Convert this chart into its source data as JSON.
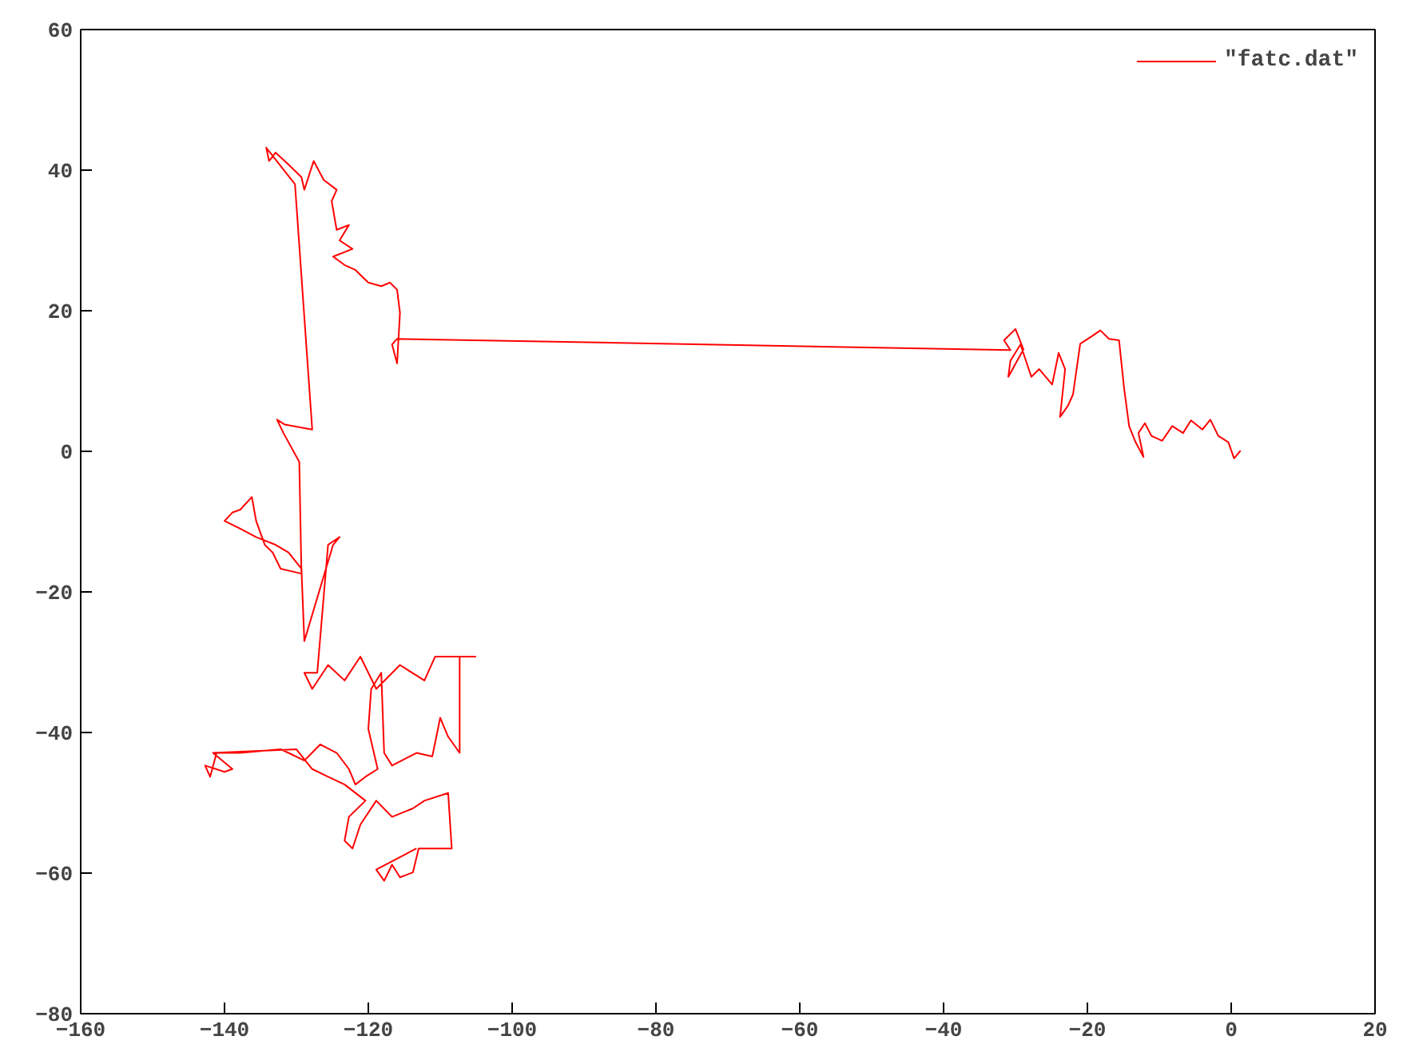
{
  "chart_data": {
    "type": "line",
    "xlim": [
      -160,
      20
    ],
    "ylim": [
      -80,
      60
    ],
    "xticks": [
      -160,
      -140,
      -120,
      -100,
      -80,
      -60,
      -40,
      -20,
      0,
      20
    ],
    "yticks": [
      -80,
      -60,
      -40,
      -20,
      0,
      20,
      40,
      60
    ],
    "grid": false,
    "legend": "top right",
    "marker": "none",
    "line_style": "solid",
    "series": [
      {
        "name": "\"fatc.dat\"",
        "color": "#ff0000",
        "x": [
          1.3,
          0.4,
          -0.4,
          -1.8,
          -2.9,
          -4,
          -5.6,
          -6.7,
          -8.2,
          -9.6,
          -11.1,
          -12,
          -12.9,
          -12.2,
          -13.3,
          -14.2,
          -14.9,
          -15.6,
          -17,
          -18.2,
          -19.5,
          -21,
          -22,
          -22.7,
          -23.8,
          -23.1,
          -24,
          -24.9,
          -26.7,
          -27.8,
          -29.3,
          -30.7,
          -31,
          -28.9,
          -30,
          -31.6,
          -30.7,
          -116,
          -116.7,
          -116,
          -115.6,
          -116,
          -117,
          -118.2,
          -120,
          -121.8,
          -123.3,
          -124.9,
          -122.2,
          -124,
          -122.7,
          -124.4,
          -125.1,
          -124.4,
          -126.2,
          -127.6,
          -128.9,
          -129.3,
          -131.1,
          -132.9,
          -133.8,
          -134.2,
          -130.2,
          -127.8,
          -131.6,
          -132.7,
          -131.8,
          -129.6,
          -129.3,
          -132.2,
          -133.3,
          -134.4,
          -135.6,
          -136.2,
          -137.8,
          -138.9,
          -140,
          -137.8,
          -135.6,
          -132.9,
          -131.1,
          -129.3,
          -128.9,
          -124.9,
          -124,
          -125.6,
          -127.1,
          -128.9,
          -127.8,
          -125.6,
          -123.3,
          -121.1,
          -118.9,
          -115.6,
          -112.2,
          -110.7,
          -105.1,
          -107.3,
          -107.3,
          -108.9,
          -110,
          -111.1,
          -113.3,
          -116.7,
          -117.8,
          -118.2,
          -119.6,
          -120,
          -118.7,
          -120.4,
          -121.8,
          -122.7,
          -124.4,
          -126.7,
          -128.9,
          -131.1,
          -132.2,
          -137.8,
          -141.1,
          -142,
          -142.7,
          -140,
          -138.9,
          -141.6,
          -130,
          -127.8,
          -125.6,
          -123.3,
          -120.4,
          -122.7,
          -123.3,
          -122.2,
          -121.1,
          -118.9,
          -116.7,
          -113.8,
          -112.2,
          -108.9,
          -108.4,
          -111.1,
          -113,
          -113.8,
          -115.6,
          -116.7,
          -117.8,
          -118.9,
          -113.3
        ],
        "values": [
          0.1,
          -1,
          1.3,
          2.2,
          4.5,
          3.1,
          4.4,
          2.6,
          3.6,
          1.5,
          2.2,
          4,
          2.6,
          -0.8,
          1.3,
          3.6,
          9,
          15.8,
          16,
          17.2,
          16.3,
          15.3,
          8.1,
          6.5,
          4.9,
          11.7,
          14,
          9.5,
          11.7,
          10.6,
          15.2,
          12.9,
          10.6,
          14.5,
          17.4,
          15.8,
          14.4,
          16,
          15.2,
          12.5,
          19.7,
          23,
          24,
          23.5,
          24,
          25.8,
          26.5,
          27.7,
          28.8,
          30,
          32.2,
          31.5,
          35.6,
          37.2,
          38.6,
          41.3,
          37.2,
          39,
          40.8,
          42.5,
          41.3,
          43.2,
          38,
          3.1,
          3.8,
          4.5,
          2.6,
          -1.5,
          -17.4,
          -16.7,
          -14.4,
          -13.3,
          -9.9,
          -6.5,
          -8.3,
          -8.7,
          -9.9,
          -11,
          -12.2,
          -13.3,
          -14.4,
          -16.7,
          -27,
          -13.3,
          -12.2,
          -13.3,
          -31.5,
          -31.5,
          -33.8,
          -30.4,
          -32.6,
          -29.2,
          -33.8,
          -30.4,
          -32.6,
          -29.2,
          -29.2,
          -29.2,
          -42.9,
          -40.6,
          -37.9,
          -43.4,
          -42.9,
          -44.7,
          -42.9,
          -31.5,
          -33.8,
          -39.5,
          -45.2,
          -46.3,
          -47.4,
          -45.2,
          -42.9,
          -41.7,
          -44,
          -42.9,
          -42.4,
          -42.9,
          -42.9,
          -46.3,
          -44.7,
          -45.6,
          -45.2,
          -42.9,
          -42.4,
          -45.2,
          -46.3,
          -47.4,
          -49.7,
          -52,
          -55.4,
          -56.5,
          -53.1,
          -49.7,
          -52,
          -50.8,
          -49.7,
          -48.6,
          -56.5,
          -56.5,
          -56.5,
          -59.9,
          -60.6,
          -58.8,
          -61.1,
          -59.5,
          -56.5
        ]
      }
    ]
  }
}
